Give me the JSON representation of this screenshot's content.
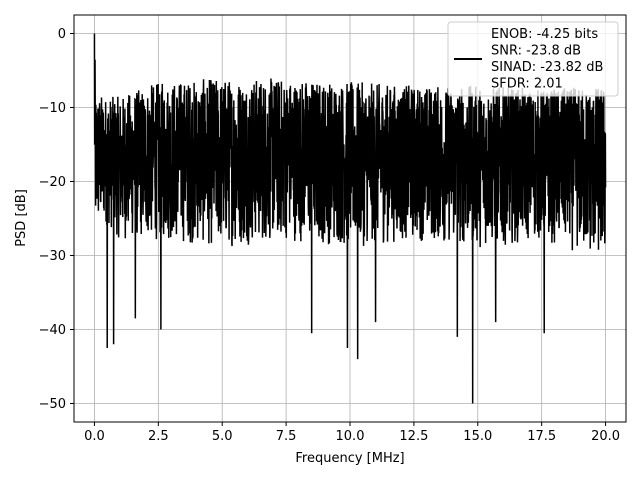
{
  "chart_data": {
    "type": "line",
    "xlabel": "Frequency [MHz]",
    "ylabel": "PSD [dB]",
    "xlim": [
      -0.8,
      20.8
    ],
    "ylim": [
      -52.5,
      2.5
    ],
    "xticks": [
      0.0,
      2.5,
      5.0,
      7.5,
      10.0,
      12.5,
      15.0,
      17.5,
      20.0
    ],
    "xtick_labels": [
      "0.0",
      "2.5",
      "5.0",
      "7.5",
      "10.0",
      "12.5",
      "15.0",
      "17.5",
      "20.0"
    ],
    "yticks": [
      0,
      -10,
      -20,
      -30,
      -40,
      -50
    ],
    "ytick_labels": [
      "0",
      "−10",
      "−20",
      "−30",
      "−40",
      "−50"
    ],
    "grid": true,
    "legend_placement": "top-right",
    "series": [
      {
        "name": "ENOB: -4.25 bits\nSNR: -23.8 dB\nSINAD: -23.82 dB\nSFDR: 2.01",
        "legend_lines": [
          "ENOB: -4.25 bits",
          "SNR: -23.8 dB",
          "SINAD: -23.82 dB",
          "SFDR: 2.01"
        ],
        "color": "#000000",
        "peak": {
          "x": 0.0,
          "y": 0.0
        },
        "envelope": {
          "x": [
            0.0,
            0.05,
            0.1,
            0.5,
            1.0,
            2.5,
            5.0,
            7.5,
            10.0,
            12.5,
            15.0,
            17.5,
            20.0
          ],
          "upper": [
            0.0,
            -7.5,
            -8.0,
            -8.5,
            -8.5,
            -6.5,
            -6.0,
            -6.0,
            -6.5,
            -7.0,
            -7.0,
            -7.5,
            -7.0
          ],
          "lower": [
            -22.0,
            -28.5,
            -27.0,
            -26.0,
            -28.0,
            -28.0,
            -29.0,
            -28.0,
            -29.0,
            -28.0,
            -29.0,
            -28.0,
            -31.0
          ]
        },
        "notable_dips": [
          {
            "x": 0.5,
            "y": -42.5
          },
          {
            "x": 0.75,
            "y": -42.0
          },
          {
            "x": 1.6,
            "y": -38.5
          },
          {
            "x": 2.6,
            "y": -40.0
          },
          {
            "x": 8.5,
            "y": -40.5
          },
          {
            "x": 9.9,
            "y": -42.5
          },
          {
            "x": 10.3,
            "y": -44.0
          },
          {
            "x": 11.0,
            "y": -39.0
          },
          {
            "x": 14.2,
            "y": -41.0
          },
          {
            "x": 14.8,
            "y": -50.0
          },
          {
            "x": 15.7,
            "y": -39.0
          },
          {
            "x": 17.6,
            "y": -40.5
          }
        ]
      }
    ]
  }
}
